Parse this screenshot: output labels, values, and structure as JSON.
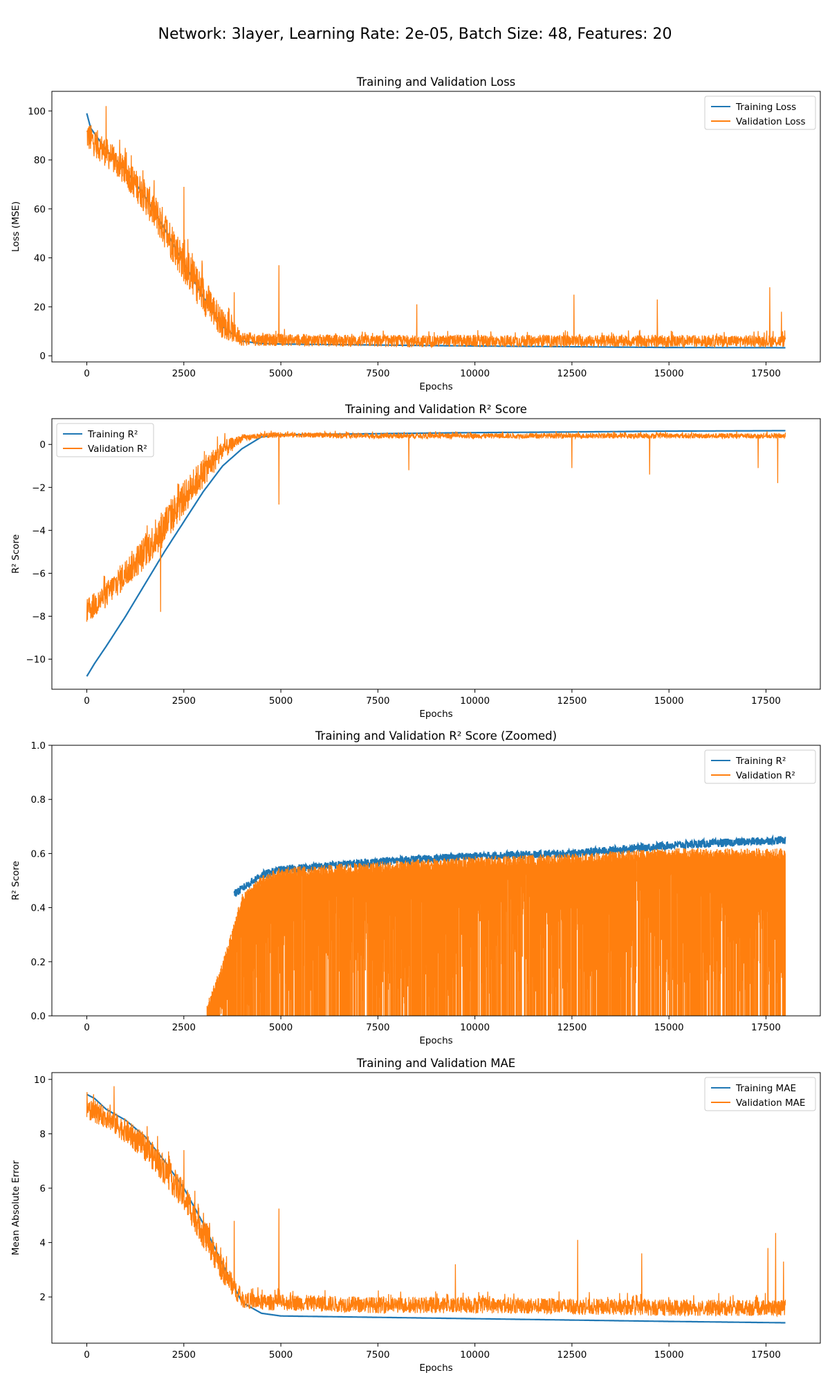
{
  "figure": {
    "suptitle": "Network: 3layer, Learning Rate: 2e-05, Batch Size: 48, Features: 20"
  },
  "colors": {
    "training": "#1f77b4",
    "validation": "#ff7f0e"
  },
  "chart_data": [
    {
      "type": "line",
      "title": "Training and Validation Loss",
      "xlabel": "Epochs",
      "ylabel": "Loss (MSE)",
      "xlim": [
        -900,
        18900
      ],
      "ylim": [
        -2.5,
        108
      ],
      "xticks": [
        0,
        2500,
        5000,
        7500,
        10000,
        12500,
        15000,
        17500
      ],
      "xtick_labels": [
        "0",
        "2500",
        "5000",
        "7500",
        "10000",
        "12500",
        "15000",
        "17500"
      ],
      "yticks": [
        0,
        20,
        40,
        60,
        80,
        100
      ],
      "ytick_labels": [
        "0",
        "20",
        "40",
        "60",
        "80",
        "100"
      ],
      "legend": "top-right",
      "series": [
        {
          "name": "Training Loss",
          "x": [
            0,
            100,
            500,
            1000,
            1500,
            2000,
            2500,
            3000,
            3500,
            4000,
            4500,
            5000,
            7500,
            10000,
            12500,
            15000,
            18000
          ],
          "y": [
            99,
            93,
            84,
            76,
            65,
            52,
            38,
            24,
            12,
            6,
            5,
            4.8,
            4.4,
            4,
            3.7,
            3.4,
            3.3
          ]
        },
        {
          "name": "Validation Loss",
          "x": [
            0,
            500,
            1000,
            1500,
            2000,
            2500,
            3000,
            3500,
            4000,
            4500,
            5000,
            7500,
            10000,
            12500,
            15000,
            18000
          ],
          "y": [
            90,
            83,
            75,
            65,
            52,
            38,
            25,
            13,
            7,
            6.5,
            6.5,
            6,
            6,
            6,
            6,
            6
          ],
          "noise": [
            6,
            6,
            6,
            7,
            8,
            8,
            8,
            6,
            3,
            2.5,
            2.5,
            2.5,
            2.5,
            2.5,
            2.5,
            2.5
          ],
          "spikes": [
            {
              "x": 500,
              "y": 102
            },
            {
              "x": 2500,
              "y": 69
            },
            {
              "x": 3800,
              "y": 26
            },
            {
              "x": 4950,
              "y": 37
            },
            {
              "x": 8500,
              "y": 21
            },
            {
              "x": 12550,
              "y": 25
            },
            {
              "x": 14700,
              "y": 23
            },
            {
              "x": 17600,
              "y": 28
            },
            {
              "x": 17900,
              "y": 18
            }
          ]
        }
      ]
    },
    {
      "type": "line",
      "title": "Training and Validation R² Score",
      "xlabel": "Epochs",
      "ylabel": "R² Score",
      "xlim": [
        -900,
        18900
      ],
      "ylim": [
        -11.4,
        1.2
      ],
      "xticks": [
        0,
        2500,
        5000,
        7500,
        10000,
        12500,
        15000,
        17500
      ],
      "xtick_labels": [
        "0",
        "2500",
        "5000",
        "7500",
        "10000",
        "12500",
        "15000",
        "17500"
      ],
      "yticks": [
        -10,
        -8,
        -6,
        -4,
        -2,
        0
      ],
      "ytick_labels": [
        "−10",
        "−8",
        "−6",
        "−4",
        "−2",
        "0"
      ],
      "legend": "top-left",
      "series": [
        {
          "name": "Training R²",
          "x": [
            0,
            200,
            500,
            1000,
            1500,
            2000,
            2500,
            3000,
            3500,
            4000,
            4500,
            5000,
            7500,
            10000,
            12500,
            15000,
            18000
          ],
          "y": [
            -10.8,
            -10.2,
            -9.4,
            -8,
            -6.5,
            -5,
            -3.6,
            -2.2,
            -1,
            -0.2,
            0.35,
            0.45,
            0.5,
            0.55,
            0.58,
            0.62,
            0.64
          ]
        },
        {
          "name": "Validation R²",
          "x": [
            0,
            500,
            1000,
            1500,
            2000,
            2500,
            3000,
            3500,
            4000,
            4500,
            5000,
            7500,
            10000,
            12500,
            15000,
            18000
          ],
          "y": [
            -7.8,
            -7,
            -6,
            -5,
            -3.8,
            -2.5,
            -1.3,
            -0.3,
            0.3,
            0.4,
            0.45,
            0.4,
            0.4,
            0.4,
            0.4,
            0.4
          ],
          "noise": [
            0.6,
            0.6,
            0.7,
            0.8,
            0.9,
            0.8,
            0.7,
            0.5,
            0.15,
            0.12,
            0.12,
            0.12,
            0.12,
            0.12,
            0.12,
            0.12
          ],
          "spikes": [
            {
              "x": 1900,
              "y": -7.8
            },
            {
              "x": 4950,
              "y": -2.8
            },
            {
              "x": 8300,
              "y": -1.2
            },
            {
              "x": 12500,
              "y": -1.1
            },
            {
              "x": 14500,
              "y": -1.4
            },
            {
              "x": 17300,
              "y": -1.1
            },
            {
              "x": 17800,
              "y": -1.8
            }
          ]
        }
      ]
    },
    {
      "type": "line",
      "title": "Training and Validation R² Score (Zoomed)",
      "xlabel": "Epochs",
      "ylabel": "R² Score",
      "xlim": [
        -900,
        18900
      ],
      "ylim": [
        0,
        1
      ],
      "xticks": [
        0,
        2500,
        5000,
        7500,
        10000,
        12500,
        15000,
        17500
      ],
      "xtick_labels": [
        "0",
        "2500",
        "5000",
        "7500",
        "10000",
        "12500",
        "15000",
        "17500"
      ],
      "yticks": [
        0,
        0.2,
        0.4,
        0.6,
        0.8,
        1.0
      ],
      "ytick_labels": [
        "0.0",
        "0.2",
        "0.4",
        "0.6",
        "0.8",
        "1.0"
      ],
      "legend": "top-right",
      "series": [
        {
          "name": "Training R²",
          "x": [
            3800,
            4500,
            5000,
            7500,
            10000,
            12500,
            15000,
            18000
          ],
          "y": [
            0.45,
            0.52,
            0.54,
            0.57,
            0.59,
            0.6,
            0.63,
            0.65
          ]
        },
        {
          "name": "Validation R²",
          "x": [
            3100,
            3500,
            4000,
            4500,
            5000,
            7500,
            10000,
            12500,
            15000,
            18000
          ],
          "y": [
            0.05,
            0.2,
            0.45,
            0.52,
            0.55,
            0.57,
            0.59,
            0.6,
            0.62,
            0.62
          ]
        }
      ]
    },
    {
      "type": "line",
      "title": "Training and Validation MAE",
      "xlabel": "Epochs",
      "ylabel": "Mean Absolute Error",
      "xlim": [
        -900,
        18900
      ],
      "ylim": [
        0.3,
        10.25
      ],
      "xticks": [
        0,
        2500,
        5000,
        7500,
        10000,
        12500,
        15000,
        17500
      ],
      "xtick_labels": [
        "0",
        "2500",
        "5000",
        "7500",
        "10000",
        "12500",
        "15000",
        "17500"
      ],
      "yticks": [
        2,
        4,
        6,
        8,
        10
      ],
      "ytick_labels": [
        "2",
        "4",
        "6",
        "8",
        "10"
      ],
      "legend": "top-right",
      "series": [
        {
          "name": "Training MAE",
          "x": [
            0,
            200,
            500,
            1000,
            1500,
            2000,
            2500,
            3000,
            3500,
            4000,
            4500,
            5000,
            7500,
            10000,
            12500,
            15000,
            18000
          ],
          "y": [
            9.45,
            9.3,
            8.9,
            8.5,
            7.9,
            7.0,
            6.0,
            4.7,
            3.2,
            1.8,
            1.4,
            1.3,
            1.25,
            1.2,
            1.15,
            1.1,
            1.05
          ]
        },
        {
          "name": "Validation MAE",
          "x": [
            0,
            500,
            1000,
            1500,
            2000,
            2500,
            3000,
            3500,
            4000,
            4500,
            5000,
            7500,
            10000,
            12500,
            15000,
            18000
          ],
          "y": [
            8.9,
            8.6,
            8.1,
            7.5,
            6.7,
            5.7,
            4.4,
            3.0,
            1.9,
            1.8,
            1.8,
            1.7,
            1.7,
            1.65,
            1.6,
            1.6
          ],
          "noise": [
            0.35,
            0.4,
            0.45,
            0.5,
            0.55,
            0.55,
            0.6,
            0.5,
            0.3,
            0.3,
            0.3,
            0.3,
            0.3,
            0.3,
            0.3,
            0.3
          ],
          "spikes": [
            {
              "x": 700,
              "y": 9.75
            },
            {
              "x": 2500,
              "y": 7.4
            },
            {
              "x": 3800,
              "y": 4.8
            },
            {
              "x": 4950,
              "y": 5.25
            },
            {
              "x": 9500,
              "y": 3.2
            },
            {
              "x": 12650,
              "y": 4.1
            },
            {
              "x": 14300,
              "y": 3.6
            },
            {
              "x": 17550,
              "y": 3.8
            },
            {
              "x": 17750,
              "y": 4.35
            },
            {
              "x": 17950,
              "y": 3.3
            }
          ]
        }
      ]
    }
  ]
}
